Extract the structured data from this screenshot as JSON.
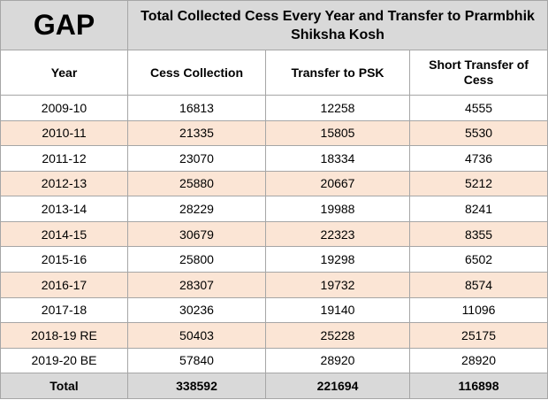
{
  "title": {
    "label": "GAP",
    "text": "Total Collected Cess Every Year and Transfer to Prarmbhik Shiksha Kosh"
  },
  "headers": [
    "Year",
    "Cess Collection",
    "Transfer to PSK",
    "Short Transfer of Cess"
  ],
  "rows": [
    {
      "year": "2009-10",
      "cess": "16813",
      "psk": "12258",
      "short": "4555"
    },
    {
      "year": "2010-11",
      "cess": "21335",
      "psk": "15805",
      "short": "5530"
    },
    {
      "year": "2011-12",
      "cess": "23070",
      "psk": "18334",
      "short": "4736"
    },
    {
      "year": "2012-13",
      "cess": "25880",
      "psk": "20667",
      "short": "5212"
    },
    {
      "year": "2013-14",
      "cess": "28229",
      "psk": "19988",
      "short": "8241"
    },
    {
      "year": "2014-15",
      "cess": "30679",
      "psk": "22323",
      "short": "8355"
    },
    {
      "year": "2015-16",
      "cess": "25800",
      "psk": "19298",
      "short": "6502"
    },
    {
      "year": "2016-17",
      "cess": "28307",
      "psk": "19732",
      "short": "8574"
    },
    {
      "year": "2017-18",
      "cess": "30236",
      "psk": "19140",
      "short": "11096"
    },
    {
      "year": "2018-19 RE",
      "cess": "50403",
      "psk": "25228",
      "short": "25175"
    },
    {
      "year": "2019-20 BE",
      "cess": "57840",
      "psk": "28920",
      "short": "28920"
    }
  ],
  "total": {
    "year": "Total",
    "cess": "338592",
    "psk": "221694",
    "short": "116898"
  },
  "colors": {
    "header_grey": "#d9d9d9",
    "row_shade": "#fbe5d5",
    "border": "#a6a6a6"
  }
}
